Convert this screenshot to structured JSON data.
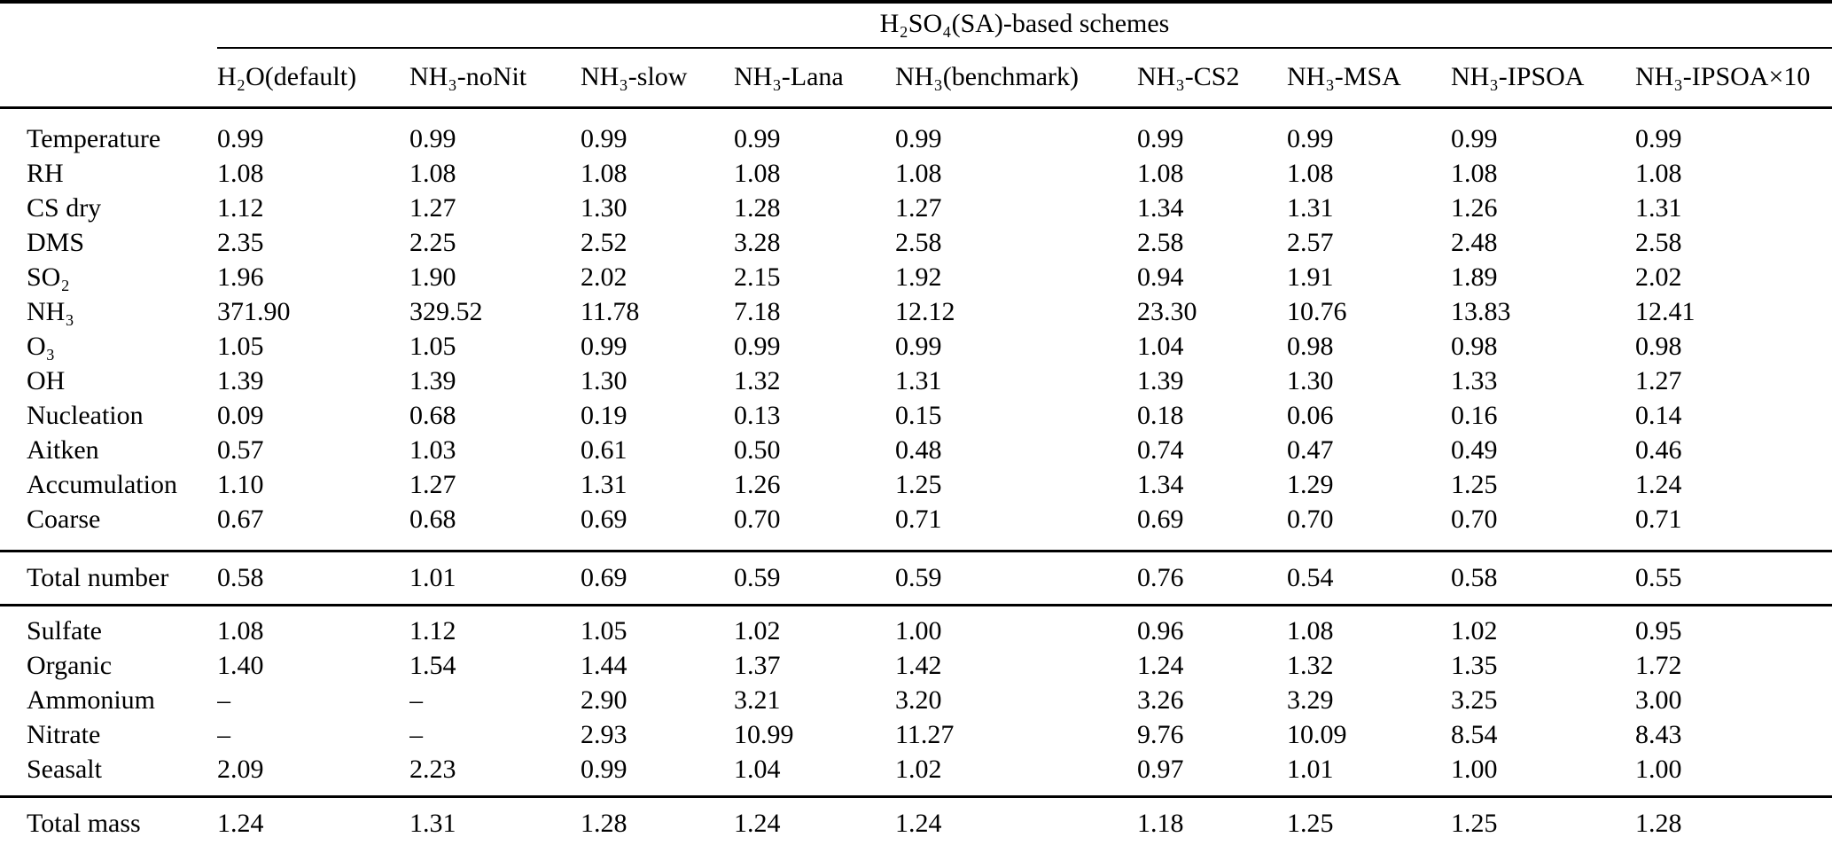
{
  "table": {
    "span_header": "H₂SO₄(SA)-based schemes",
    "row_label_header": "",
    "columns": [
      "H₂O(default)",
      "NH₃-noNit",
      "NH₃-slow",
      "NH₃-Lana",
      "NH₃(benchmark)",
      "NH₃-CS2",
      "NH₃-MSA",
      "NH₃-IPSOA",
      "NH₃-IPSOA×10"
    ],
    "missing_value_symbol": "–",
    "text_color": "#000000",
    "background_color": "#ffffff",
    "groups": [
      {
        "rows": [
          {
            "label": "Temperature",
            "values": [
              "0.99",
              "0.99",
              "0.99",
              "0.99",
              "0.99",
              "0.99",
              "0.99",
              "0.99",
              "0.99"
            ]
          },
          {
            "label": "RH",
            "values": [
              "1.08",
              "1.08",
              "1.08",
              "1.08",
              "1.08",
              "1.08",
              "1.08",
              "1.08",
              "1.08"
            ]
          },
          {
            "label": "CS dry",
            "values": [
              "1.12",
              "1.27",
              "1.30",
              "1.28",
              "1.27",
              "1.34",
              "1.31",
              "1.26",
              "1.31"
            ]
          },
          {
            "label": "DMS",
            "values": [
              "2.35",
              "2.25",
              "2.52",
              "3.28",
              "2.58",
              "2.58",
              "2.57",
              "2.48",
              "2.58"
            ]
          },
          {
            "label": "SO₂",
            "values": [
              "1.96",
              "1.90",
              "2.02",
              "2.15",
              "1.92",
              "0.94",
              "1.91",
              "1.89",
              "2.02"
            ]
          },
          {
            "label": "NH₃",
            "values": [
              "371.90",
              "329.52",
              "11.78",
              "7.18",
              "12.12",
              "23.30",
              "10.76",
              "13.83",
              "12.41"
            ]
          },
          {
            "label": "O₃",
            "values": [
              "1.05",
              "1.05",
              "0.99",
              "0.99",
              "0.99",
              "1.04",
              "0.98",
              "0.98",
              "0.98"
            ]
          },
          {
            "label": "OH",
            "values": [
              "1.39",
              "1.39",
              "1.30",
              "1.32",
              "1.31",
              "1.39",
              "1.30",
              "1.33",
              "1.27"
            ]
          },
          {
            "label": "Nucleation",
            "values": [
              "0.09",
              "0.68",
              "0.19",
              "0.13",
              "0.15",
              "0.18",
              "0.06",
              "0.16",
              "0.14"
            ]
          },
          {
            "label": "Aitken",
            "values": [
              "0.57",
              "1.03",
              "0.61",
              "0.50",
              "0.48",
              "0.74",
              "0.47",
              "0.49",
              "0.46"
            ]
          },
          {
            "label": "Accumulation",
            "values": [
              "1.10",
              "1.27",
              "1.31",
              "1.26",
              "1.25",
              "1.34",
              "1.29",
              "1.25",
              "1.24"
            ]
          },
          {
            "label": "Coarse",
            "values": [
              "0.67",
              "0.68",
              "0.69",
              "0.70",
              "0.71",
              "0.69",
              "0.70",
              "0.70",
              "0.71"
            ]
          }
        ]
      },
      {
        "rows": [
          {
            "label": "Total number",
            "values": [
              "0.58",
              "1.01",
              "0.69",
              "0.59",
              "0.59",
              "0.76",
              "0.54",
              "0.58",
              "0.55"
            ]
          }
        ]
      },
      {
        "rows": [
          {
            "label": "Sulfate",
            "values": [
              "1.08",
              "1.12",
              "1.05",
              "1.02",
              "1.00",
              "0.96",
              "1.08",
              "1.02",
              "0.95"
            ]
          },
          {
            "label": "Organic",
            "values": [
              "1.40",
              "1.54",
              "1.44",
              "1.37",
              "1.42",
              "1.24",
              "1.32",
              "1.35",
              "1.72"
            ]
          },
          {
            "label": "Ammonium",
            "values": [
              "–",
              "–",
              "2.90",
              "3.21",
              "3.20",
              "3.26",
              "3.29",
              "3.25",
              "3.00"
            ]
          },
          {
            "label": "Nitrate",
            "values": [
              "–",
              "–",
              "2.93",
              "10.99",
              "11.27",
              "9.76",
              "10.09",
              "8.54",
              "8.43"
            ]
          },
          {
            "label": "Seasalt",
            "values": [
              "2.09",
              "2.23",
              "0.99",
              "1.04",
              "1.02",
              "0.97",
              "1.01",
              "1.00",
              "1.00"
            ]
          }
        ]
      },
      {
        "rows": [
          {
            "label": "Total mass",
            "values": [
              "1.24",
              "1.31",
              "1.28",
              "1.24",
              "1.24",
              "1.18",
              "1.25",
              "1.25",
              "1.28"
            ]
          }
        ]
      }
    ]
  }
}
